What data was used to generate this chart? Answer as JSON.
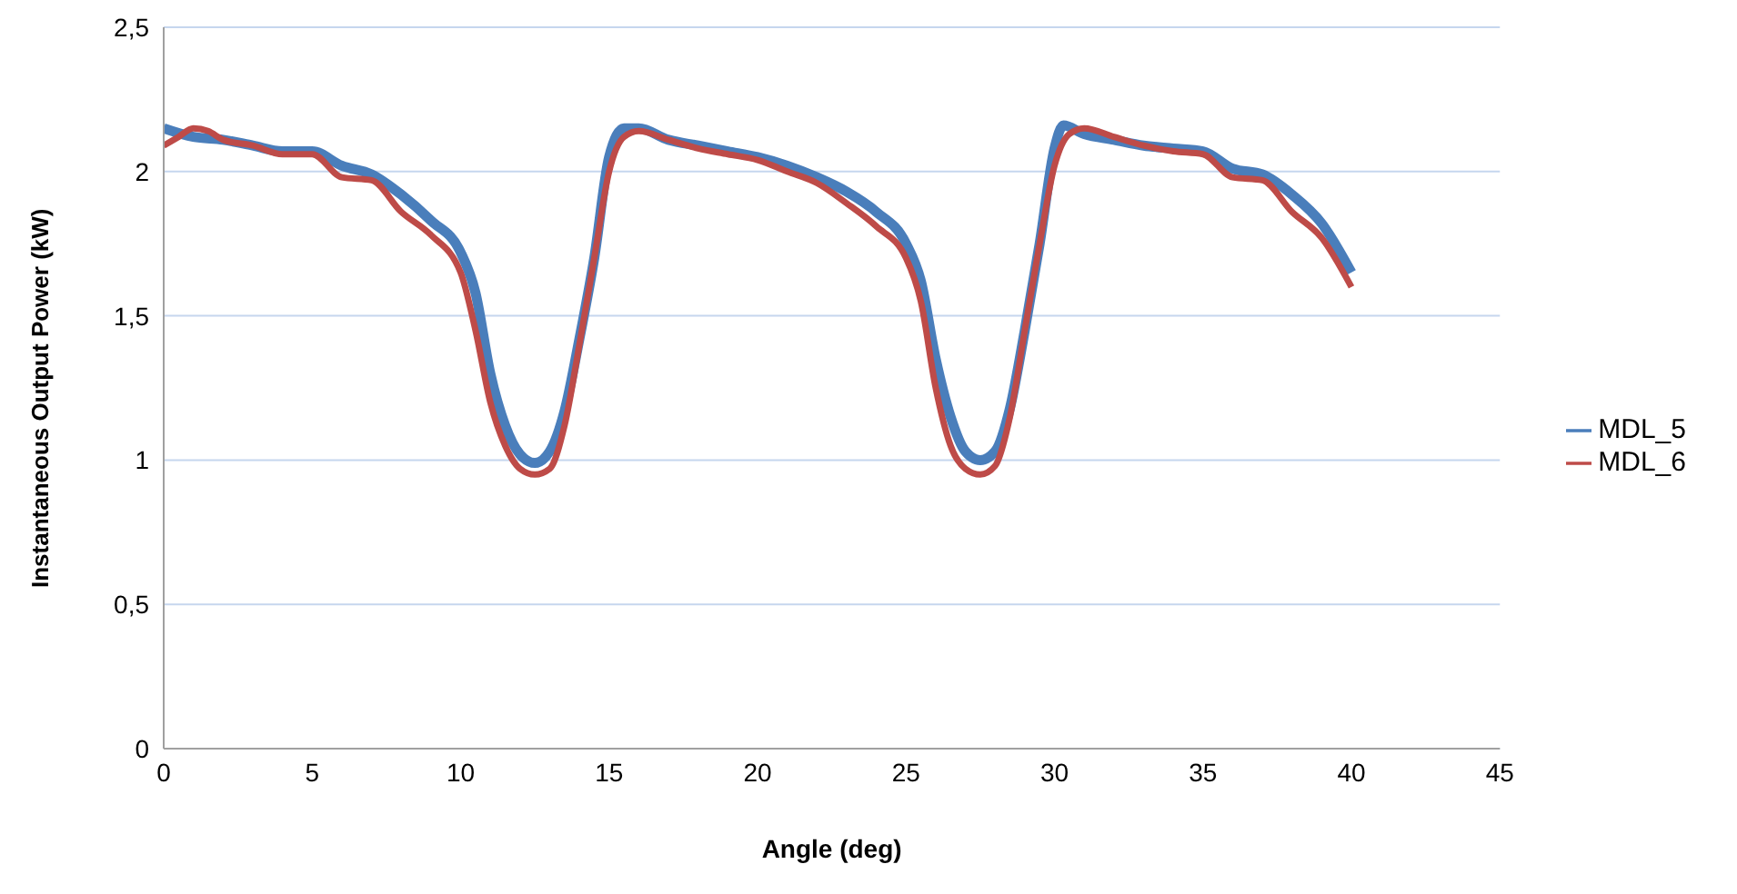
{
  "chart_data": {
    "type": "line",
    "xlabel": "Angle (deg)",
    "ylabel": "Instantaneous Output Power (kW)",
    "xlim": [
      0,
      45
    ],
    "xticks": [
      0,
      5,
      10,
      15,
      20,
      25,
      30,
      35,
      40,
      45
    ],
    "ylim": [
      0,
      2.5
    ],
    "yticks": [
      0,
      {
        "value": 0.5,
        "label": "0,5"
      },
      1,
      {
        "value": 1.5,
        "label": "1,5"
      },
      2,
      {
        "value": 2.5,
        "label": "2,5"
      }
    ],
    "grid": "y",
    "legend": "right",
    "marker": "none",
    "line_style": "solid",
    "series": [
      {
        "name": "MDL_5",
        "color": "#4a7ebb",
        "x": [
          0,
          1,
          2,
          3,
          4,
          5,
          6,
          7,
          8,
          9,
          10,
          10.5,
          11,
          11.5,
          12,
          12.5,
          13,
          13.5,
          14,
          14.5,
          15,
          15.5,
          16,
          17,
          18,
          19,
          20,
          21,
          22,
          23,
          24,
          25,
          25.5,
          26,
          26.5,
          27,
          27.5,
          28,
          28.5,
          29,
          29.5,
          30,
          30.3,
          31,
          32,
          33,
          34,
          35,
          36,
          37,
          38,
          39,
          40
        ],
        "values": [
          2.15,
          2.12,
          2.11,
          2.09,
          2.07,
          2.07,
          2.02,
          1.99,
          1.92,
          1.83,
          1.72,
          1.58,
          1.3,
          1.12,
          1.02,
          0.99,
          1.03,
          1.17,
          1.42,
          1.7,
          2.05,
          2.15,
          2.15,
          2.11,
          2.09,
          2.07,
          2.05,
          2.02,
          1.98,
          1.93,
          1.86,
          1.75,
          1.62,
          1.35,
          1.15,
          1.03,
          1.0,
          1.03,
          1.18,
          1.45,
          1.75,
          2.08,
          2.16,
          2.13,
          2.11,
          2.09,
          2.08,
          2.07,
          2.01,
          1.99,
          1.92,
          1.82,
          1.65
        ]
      },
      {
        "name": "MDL_6",
        "color": "#be4b48",
        "x": [
          0,
          0.5,
          1,
          1.5,
          2,
          3,
          4,
          5,
          6,
          7,
          8,
          9,
          10,
          10.5,
          11,
          11.5,
          12,
          12.5,
          13,
          13.5,
          14,
          14.5,
          15,
          15.5,
          16,
          17,
          18,
          19,
          20,
          21,
          22,
          23,
          24,
          25,
          25.5,
          26,
          26.5,
          27,
          27.5,
          28,
          28.5,
          29,
          29.5,
          30,
          30.5,
          31,
          32,
          33,
          34,
          35,
          36,
          37,
          38,
          39,
          40
        ],
        "values": [
          2.09,
          2.12,
          2.15,
          2.14,
          2.11,
          2.09,
          2.06,
          2.06,
          1.98,
          1.97,
          1.86,
          1.78,
          1.65,
          1.45,
          1.2,
          1.05,
          0.97,
          0.95,
          0.97,
          1.12,
          1.4,
          1.7,
          2.0,
          2.12,
          2.14,
          2.11,
          2.08,
          2.06,
          2.04,
          2.0,
          1.96,
          1.89,
          1.81,
          1.7,
          1.55,
          1.25,
          1.05,
          0.97,
          0.95,
          0.98,
          1.15,
          1.45,
          1.75,
          2.02,
          2.13,
          2.15,
          2.12,
          2.09,
          2.07,
          2.06,
          1.98,
          1.97,
          1.86,
          1.77,
          1.6
        ]
      }
    ]
  }
}
